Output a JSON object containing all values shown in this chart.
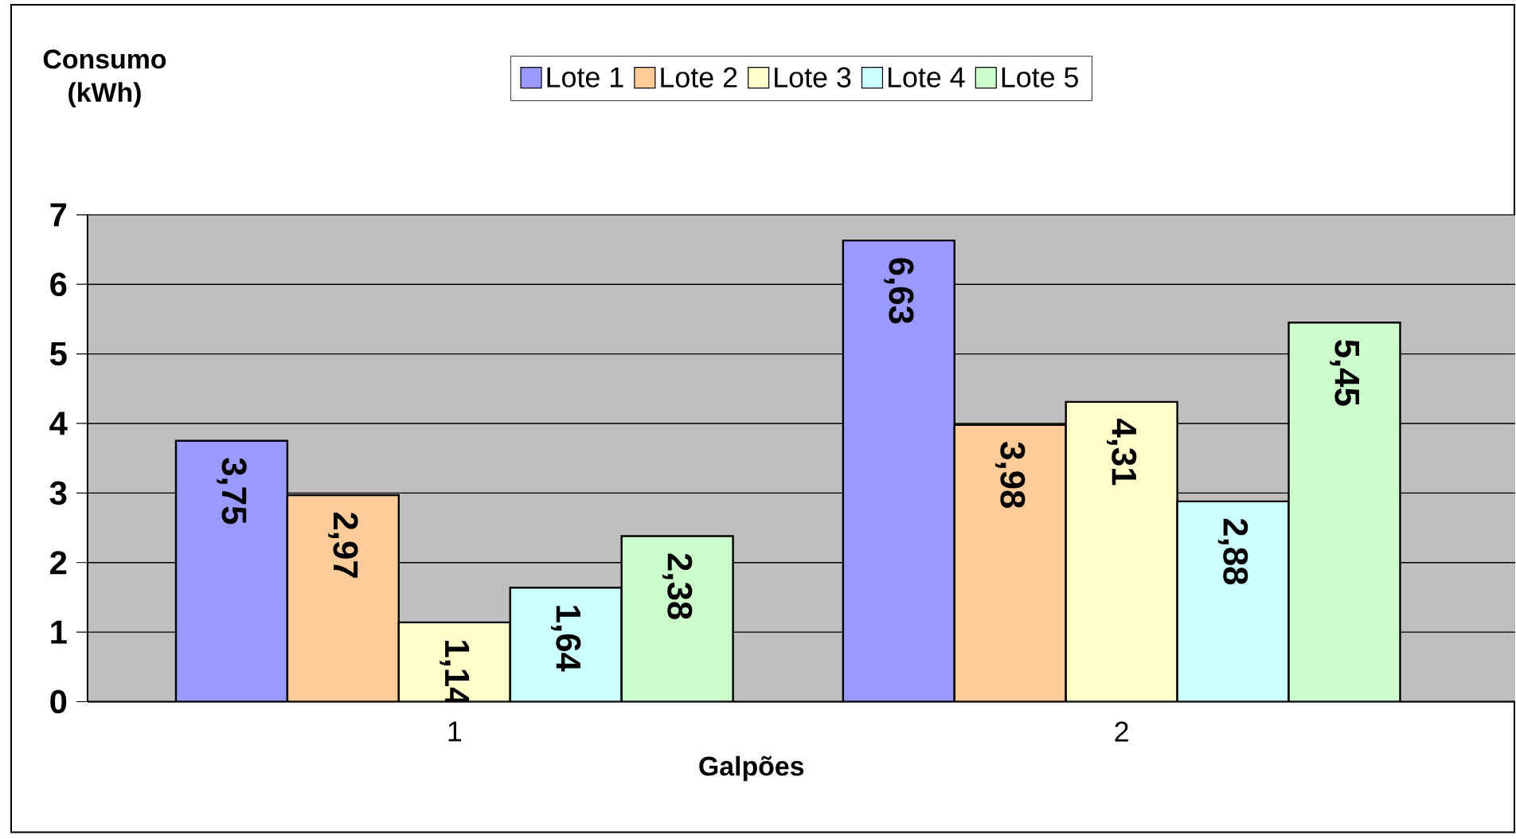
{
  "chart_data": {
    "type": "bar",
    "ylabel": "Consumo (kWh)",
    "xlabel": "Galpões",
    "categories": [
      "1",
      "2"
    ],
    "series": [
      {
        "name": "Lote 1",
        "color": "#9999ff",
        "values": [
          3.75,
          6.63
        ],
        "value_labels": [
          "3,75",
          "6,63"
        ]
      },
      {
        "name": "Lote 2",
        "color": "#ffcc99",
        "values": [
          2.97,
          3.98
        ],
        "value_labels": [
          "2,97",
          "3,98"
        ]
      },
      {
        "name": "Lote 3",
        "color": "#ffffcc",
        "values": [
          1.14,
          4.31
        ],
        "value_labels": [
          "1,14",
          "4,31"
        ]
      },
      {
        "name": "Lote 4",
        "color": "#ccffff",
        "values": [
          1.64,
          2.88
        ],
        "value_labels": [
          "1,64",
          "2,88"
        ]
      },
      {
        "name": "Lote 5",
        "color": "#ccffcc",
        "values": [
          2.38,
          5.45
        ],
        "value_labels": [
          "2,38",
          "5,45"
        ]
      }
    ],
    "ylim": [
      0,
      7
    ],
    "yticks": [
      0,
      1,
      2,
      3,
      4,
      5,
      6,
      7
    ],
    "grid": "y",
    "legend": "top"
  }
}
